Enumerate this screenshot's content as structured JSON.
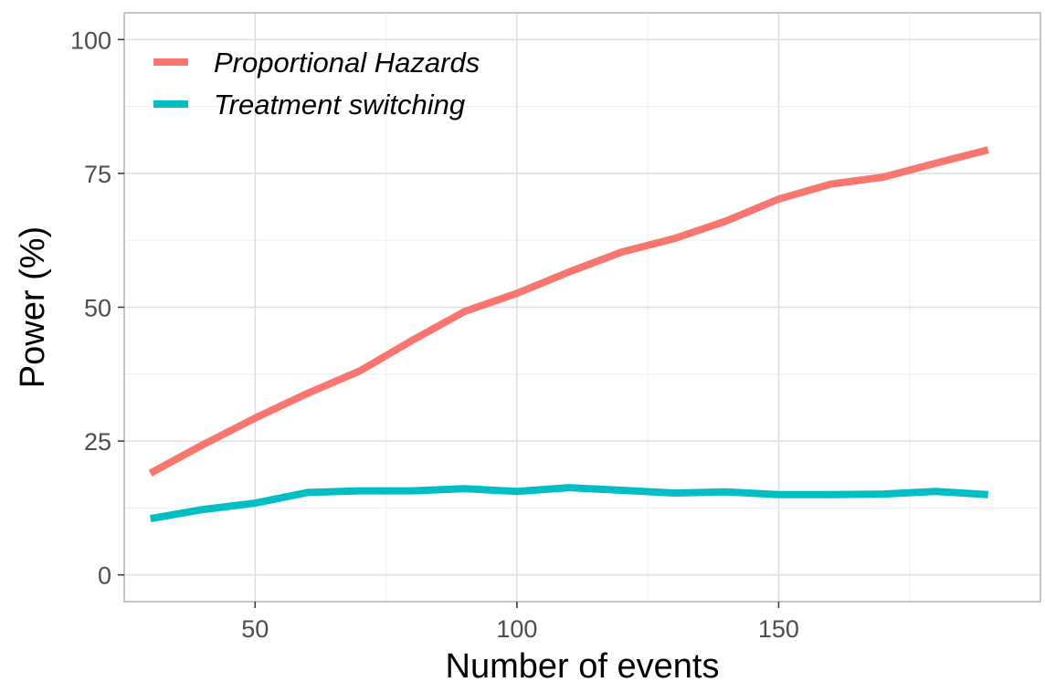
{
  "chart_data": {
    "type": "line",
    "title": "",
    "xlabel": "Number of events",
    "ylabel": "Power (%)",
    "xlim": [
      25,
      200
    ],
    "ylim": [
      -5,
      105
    ],
    "x_ticks": [
      50,
      100,
      150
    ],
    "x_tick_labels": [
      "50",
      "100",
      "150"
    ],
    "y_ticks": [
      0,
      25,
      50,
      75,
      100
    ],
    "y_tick_labels": [
      "0",
      "25",
      "50",
      "75",
      "100"
    ],
    "x_minor_ticks": [
      25,
      75,
      125,
      175
    ],
    "y_minor_ticks": [
      12.5,
      37.5,
      62.5,
      87.5
    ],
    "grid": true,
    "legend_position": "top-left",
    "series": [
      {
        "name": "Proportional Hazards",
        "color": "#F8766D",
        "x": [
          30,
          40,
          50,
          60,
          70,
          80,
          90,
          100,
          110,
          120,
          130,
          140,
          150,
          160,
          170,
          180,
          190
        ],
        "y": [
          19,
          24.3,
          29.3,
          33.9,
          38.1,
          43.8,
          49.2,
          52.6,
          56.6,
          60.3,
          62.8,
          66.1,
          70.2,
          73,
          74.3,
          76.9,
          79.4
        ]
      },
      {
        "name": "Treatment switching",
        "color": "#00BFC4",
        "x": [
          30,
          40,
          50,
          60,
          70,
          80,
          90,
          100,
          110,
          120,
          130,
          140,
          150,
          160,
          170,
          180,
          190
        ],
        "y": [
          10.5,
          12.2,
          13.4,
          15.4,
          15.7,
          15.7,
          16.1,
          15.6,
          16.3,
          15.8,
          15.3,
          15.5,
          15,
          15,
          15.1,
          15.6,
          15
        ]
      }
    ]
  }
}
